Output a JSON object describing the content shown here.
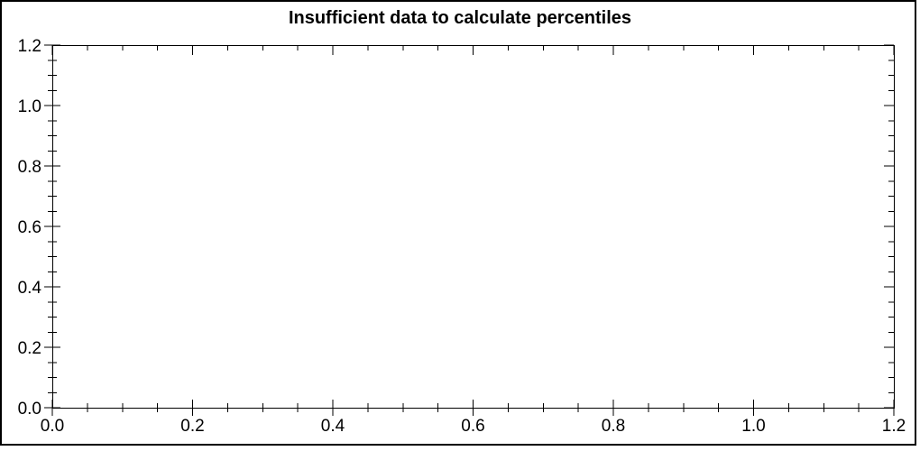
{
  "figure": {
    "background_color": "#ffffff",
    "border_color": "#000000"
  },
  "chart_data": {
    "type": "scatter",
    "title": "Insufficient data to calculate percentiles",
    "series": [],
    "xlabel": "",
    "ylabel": "",
    "xlim": [
      0.0,
      1.2
    ],
    "ylim": [
      0.0,
      1.2
    ],
    "x_ticks": [
      0.0,
      0.2,
      0.4,
      0.6,
      0.8,
      1.0,
      1.2
    ],
    "x_tick_labels": [
      "0.0",
      "0.2",
      "0.4",
      "0.6",
      "0.8",
      "1.0",
      "1.2"
    ],
    "y_ticks": [
      0.0,
      0.2,
      0.4,
      0.6,
      0.8,
      1.0,
      1.2
    ],
    "y_tick_labels": [
      "0.0",
      "0.2",
      "0.4",
      "0.6",
      "0.8",
      "1.0",
      "1.2"
    ],
    "minor_tick_step": 0.05,
    "grid": false,
    "frame": "box",
    "legend": null,
    "axis_color": "#000000",
    "text_color": "#000000"
  }
}
